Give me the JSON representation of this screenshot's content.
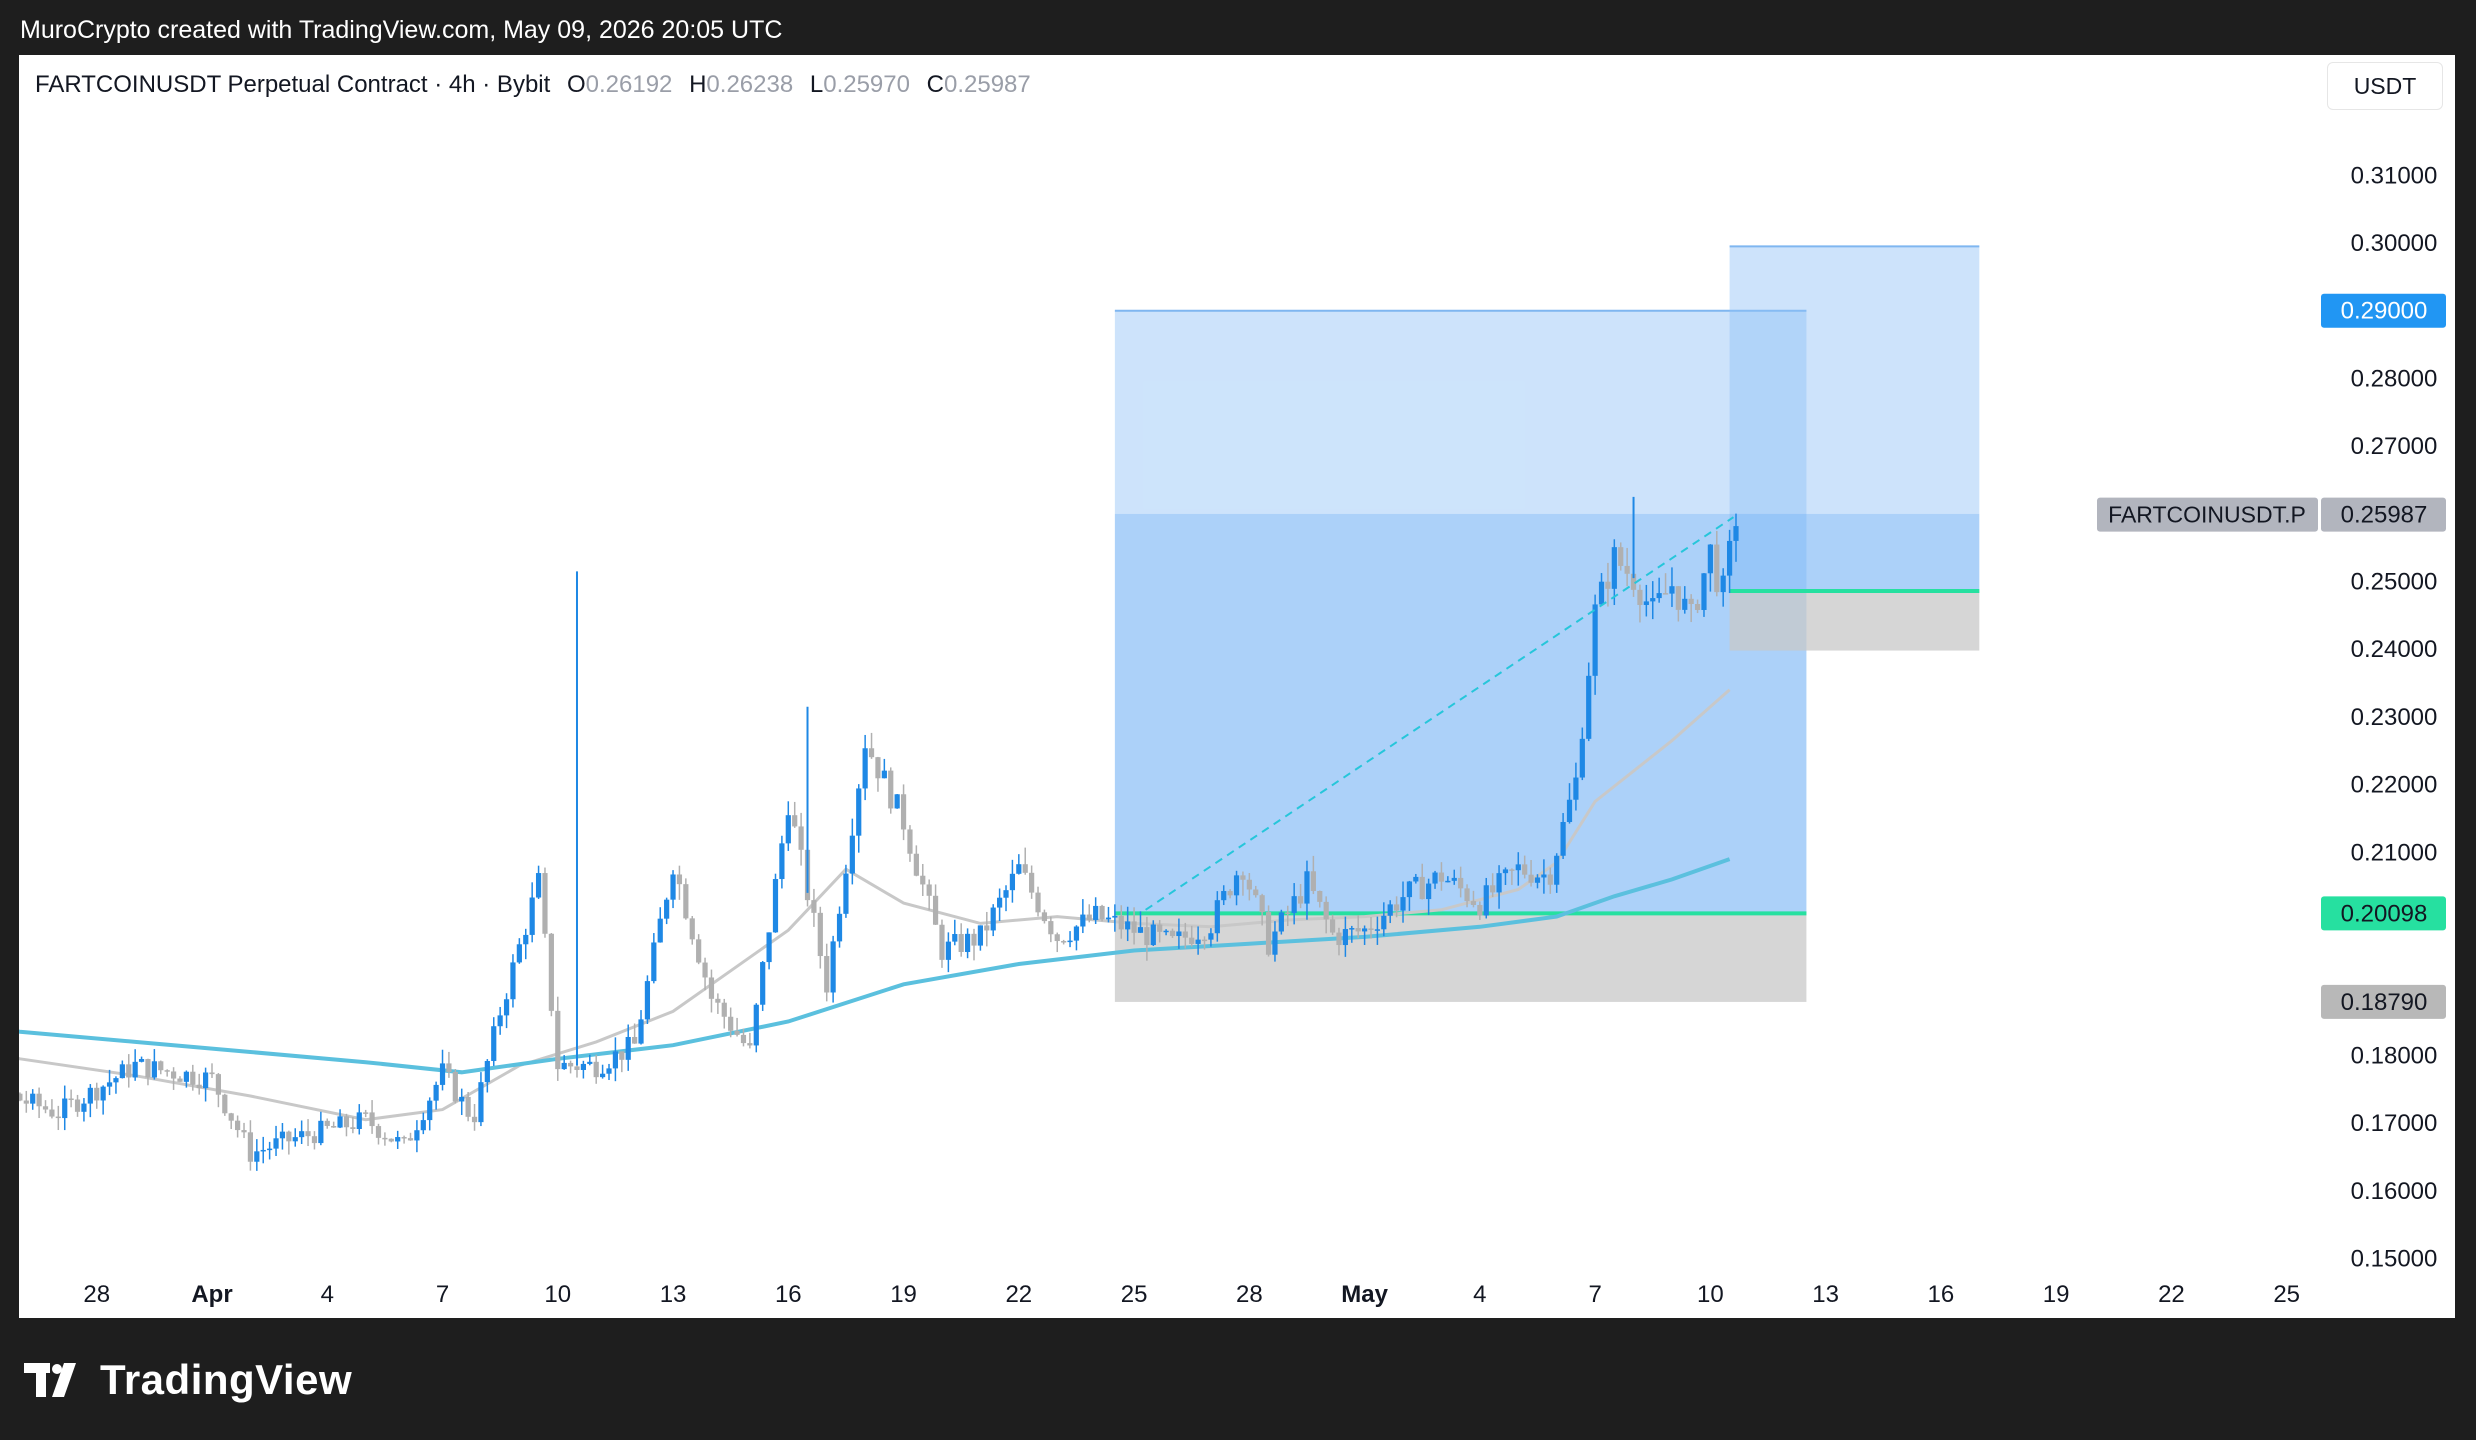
{
  "header": {
    "attribution": "MuroCrypto created with TradingView.com, May 09, 2026 20:05 UTC"
  },
  "legend": {
    "symbol_line": "FARTCOINUSDT Perpetual Contract · 4h · Bybit",
    "open_key": "O",
    "open": "0.26192",
    "high_key": "H",
    "high": "0.26238",
    "low_key": "L",
    "low": "0.25970",
    "close_key": "C",
    "close": "0.25987"
  },
  "currency_button": "USDT",
  "footer": {
    "brand": "TradingView"
  },
  "colors": {
    "candle": "#1e88e5",
    "candle_alt": "#b0b0b0",
    "ma_long": "#5bc0de",
    "ma_short": "#c8c8c8",
    "target_zone": "#90c2f7",
    "stop_zone": "#c8c8c8",
    "entry_line": "#26e0a0",
    "price_tag": "#b2b5be",
    "target_tag": "#2196f3"
  },
  "chart_data": {
    "type": "candlestick",
    "symbol": "FARTCOINUSDT",
    "timeframe": "4h",
    "exchange": "Bybit",
    "ylim": [
      0.15,
      0.315
    ],
    "y_ticks": [
      "0.31000",
      "0.30000",
      "0.28000",
      "0.27000",
      "0.25000",
      "0.24000",
      "0.23000",
      "0.22000",
      "0.21000",
      "0.18000",
      "0.17000",
      "0.16000",
      "0.15000"
    ],
    "x_tick_labels": [
      "28",
      "Apr",
      "4",
      "7",
      "10",
      "13",
      "16",
      "19",
      "22",
      "25",
      "28",
      "May",
      "4",
      "7",
      "10",
      "13",
      "16",
      "19",
      "22",
      "25"
    ],
    "x_tick_days": [
      -3,
      0,
      3,
      6,
      9,
      12,
      15,
      18,
      21,
      24,
      27,
      30,
      33,
      36,
      39,
      42,
      45,
      48,
      51,
      54
    ],
    "price_labels": [
      {
        "text": "0.29000",
        "value": 0.29,
        "kind": "target"
      },
      {
        "text": "0.25987",
        "value": 0.25987,
        "kind": "last",
        "symbol": "FARTCOINUSDT.P"
      },
      {
        "text": "0.20098",
        "value": 0.20098,
        "kind": "entry"
      },
      {
        "text": "0.18790",
        "value": 0.1879,
        "kind": "stop"
      }
    ],
    "positions": [
      {
        "start_day": 23.5,
        "end_day": 41.5,
        "entry": 0.20098,
        "target": 0.29,
        "stop": 0.1879,
        "fill_to": 0.26
      },
      {
        "start_day": 39.5,
        "end_day": 46.0,
        "entry": 0.2486,
        "target": 0.2995,
        "stop": 0.2398,
        "fill_to": 0.26
      }
    ],
    "projection_line": {
      "from_day": 24.3,
      "from": 0.2015,
      "to_day": 39.6,
      "to": 0.2595
    },
    "ma_long_points": [
      [
        -8,
        0.1855
      ],
      [
        -5,
        0.1835
      ],
      [
        -2,
        0.182
      ],
      [
        1,
        0.1805
      ],
      [
        4,
        0.179
      ],
      [
        6.5,
        0.1775
      ],
      [
        9,
        0.1795
      ],
      [
        12,
        0.1815
      ],
      [
        15,
        0.185
      ],
      [
        18,
        0.1905
      ],
      [
        21,
        0.1935
      ],
      [
        24,
        0.1955
      ],
      [
        27,
        0.1965
      ],
      [
        30,
        0.1975
      ],
      [
        33,
        0.199
      ],
      [
        35,
        0.2005
      ],
      [
        36.5,
        0.2035
      ],
      [
        38,
        0.206
      ],
      [
        39.5,
        0.209
      ]
    ],
    "ma_short_points": [
      [
        -8,
        0.1845
      ],
      [
        -5,
        0.1795
      ],
      [
        -2,
        0.177
      ],
      [
        1,
        0.174
      ],
      [
        4,
        0.1705
      ],
      [
        6,
        0.172
      ],
      [
        8,
        0.1785
      ],
      [
        10,
        0.182
      ],
      [
        12,
        0.1865
      ],
      [
        13.5,
        0.1925
      ],
      [
        15,
        0.1985
      ],
      [
        16.5,
        0.2075
      ],
      [
        18,
        0.2025
      ],
      [
        20,
        0.1995
      ],
      [
        22,
        0.2005
      ],
      [
        24,
        0.1995
      ],
      [
        26,
        0.199
      ],
      [
        28,
        0.2
      ],
      [
        30,
        0.2005
      ],
      [
        32,
        0.2015
      ],
      [
        34,
        0.2045
      ],
      [
        35,
        0.2085
      ],
      [
        36,
        0.2175
      ],
      [
        38,
        0.2265
      ],
      [
        39.5,
        0.234
      ]
    ],
    "candle_key_points": [
      [
        -8,
        0.1775
      ],
      [
        -6,
        0.1755
      ],
      [
        -4,
        0.1715
      ],
      [
        -2,
        0.1785
      ],
      [
        0,
        0.1765
      ],
      [
        1,
        0.1655
      ],
      [
        2,
        0.1675
      ],
      [
        4,
        0.1705
      ],
      [
        5,
        0.1665
      ],
      [
        6,
        0.1775
      ],
      [
        6.8,
        0.1705
      ],
      [
        7.5,
        0.1865
      ],
      [
        8.5,
        0.2055
      ],
      [
        9,
        0.1785
      ],
      [
        10,
        0.1785
      ],
      [
        11,
        0.1815
      ],
      [
        12,
        0.2085
      ],
      [
        13,
        0.1885
      ],
      [
        14,
        0.1805
      ],
      [
        15,
        0.2175
      ],
      [
        16,
        0.1905
      ],
      [
        17,
        0.2265
      ],
      [
        18,
        0.2145
      ],
      [
        19,
        0.1955
      ],
      [
        20,
        0.1975
      ],
      [
        21,
        0.2075
      ],
      [
        22,
        0.1975
      ],
      [
        23,
        0.2005
      ],
      [
        24,
        0.1985
      ],
      [
        25,
        0.1965
      ],
      [
        26,
        0.1995
      ],
      [
        26.8,
        0.2085
      ],
      [
        27.5,
        0.1965
      ],
      [
        28.5,
        0.2055
      ],
      [
        29.2,
        0.1975
      ],
      [
        30,
        0.1985
      ],
      [
        31,
        0.2035
      ],
      [
        32,
        0.2065
      ],
      [
        33,
        0.2025
      ],
      [
        34,
        0.2075
      ],
      [
        34.8,
        0.2065
      ],
      [
        35.5,
        0.2205
      ],
      [
        36,
        0.2455
      ],
      [
        36.5,
        0.2535
      ],
      [
        37,
        0.2505
      ],
      [
        37.5,
        0.2455
      ],
      [
        38,
        0.2495
      ],
      [
        38.5,
        0.2445
      ],
      [
        39,
        0.2545
      ],
      [
        39.3,
        0.2475
      ],
      [
        39.7,
        0.2605
      ]
    ],
    "spikes": [
      {
        "day": 9.5,
        "high": 0.2515
      },
      {
        "day": 15.5,
        "high": 0.2315
      },
      {
        "day": 37,
        "high": 0.2625
      }
    ]
  }
}
